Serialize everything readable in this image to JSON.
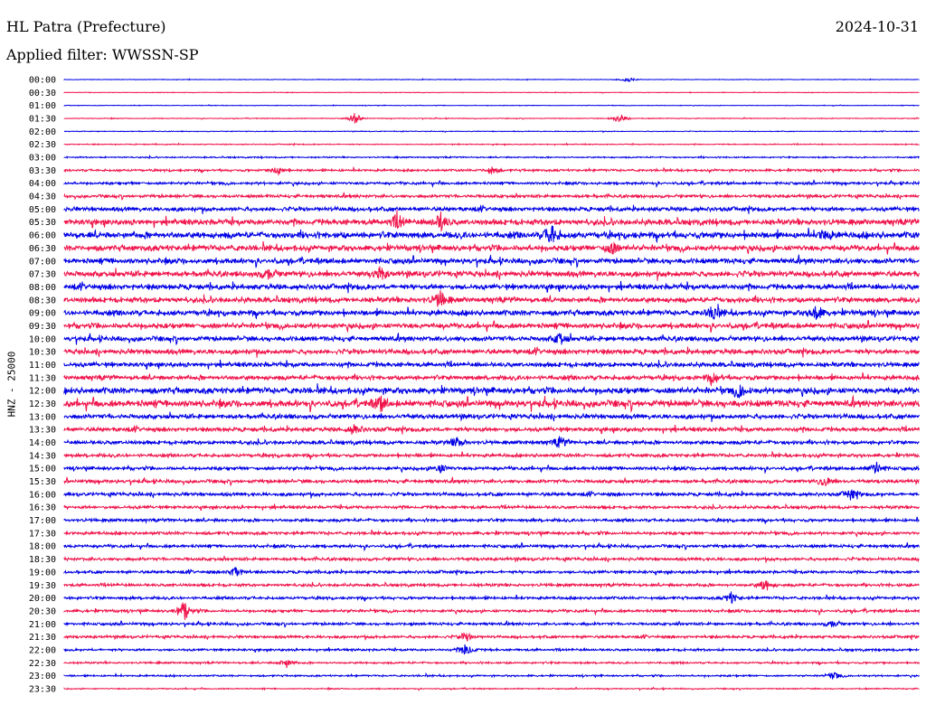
{
  "header": {
    "station": "HL Patra (Prefecture)",
    "date": "2024-10-31",
    "filter": "Applied filter: WWSSN-SP"
  },
  "axis": {
    "ylabel": "HNZ - 25000"
  },
  "colors": {
    "trace_a": "#0000e6",
    "trace_b": "#f0144b"
  },
  "chart_data": {
    "type": "line",
    "kind": "helicorder",
    "ylabel": "HNZ - 25000",
    "row_labels": [
      "00:00",
      "00:30",
      "01:00",
      "01:30",
      "02:00",
      "02:30",
      "03:00",
      "03:30",
      "04:00",
      "04:30",
      "05:00",
      "05:30",
      "06:00",
      "06:30",
      "07:00",
      "07:30",
      "08:00",
      "08:30",
      "09:00",
      "09:30",
      "10:00",
      "10:30",
      "11:00",
      "11:30",
      "12:00",
      "12:30",
      "13:00",
      "13:30",
      "14:00",
      "14:30",
      "15:00",
      "15:30",
      "16:00",
      "16:30",
      "17:00",
      "17:30",
      "18:00",
      "18:30",
      "19:00",
      "19:30",
      "20:00",
      "20:30",
      "21:00",
      "21:30",
      "22:00",
      "22:30",
      "23:00",
      "23:30"
    ],
    "row_colors": [
      "blue",
      "red"
    ],
    "noise_level": [
      0.3,
      0.3,
      0.3,
      0.4,
      0.4,
      0.5,
      0.7,
      1.2,
      1.4,
      1.6,
      2.2,
      3.0,
      3.4,
      3.0,
      2.8,
      3.0,
      2.8,
      2.8,
      2.8,
      2.8,
      2.6,
      2.6,
      2.4,
      2.4,
      3.2,
      3.6,
      2.4,
      2.2,
      2.0,
      1.8,
      1.8,
      1.8,
      1.8,
      1.6,
      1.6,
      1.6,
      1.6,
      1.6,
      1.5,
      1.5,
      1.5,
      1.5,
      1.4,
      1.4,
      1.2,
      1.0,
      0.9,
      0.6
    ],
    "events": [
      {
        "row": 0,
        "t": 0.66,
        "amp": 3
      },
      {
        "row": 3,
        "t": 0.34,
        "amp": 6
      },
      {
        "row": 3,
        "t": 0.65,
        "amp": 6
      },
      {
        "row": 7,
        "t": 0.25,
        "amp": 5
      },
      {
        "row": 7,
        "t": 0.5,
        "amp": 5
      },
      {
        "row": 11,
        "t": 0.39,
        "amp": 9
      },
      {
        "row": 11,
        "t": 0.44,
        "amp": 10
      },
      {
        "row": 12,
        "t": 0.57,
        "amp": 12
      },
      {
        "row": 12,
        "t": 0.89,
        "amp": 7
      },
      {
        "row": 13,
        "t": 0.64,
        "amp": 7
      },
      {
        "row": 15,
        "t": 0.24,
        "amp": 7
      },
      {
        "row": 15,
        "t": 0.37,
        "amp": 7
      },
      {
        "row": 17,
        "t": 0.44,
        "amp": 9
      },
      {
        "row": 18,
        "t": 0.76,
        "amp": 8
      },
      {
        "row": 18,
        "t": 0.88,
        "amp": 9
      },
      {
        "row": 20,
        "t": 0.58,
        "amp": 6
      },
      {
        "row": 23,
        "t": 0.76,
        "amp": 6
      },
      {
        "row": 24,
        "t": 0.79,
        "amp": 7
      },
      {
        "row": 25,
        "t": 0.37,
        "amp": 7
      },
      {
        "row": 27,
        "t": 0.34,
        "amp": 6
      },
      {
        "row": 28,
        "t": 0.46,
        "amp": 6
      },
      {
        "row": 28,
        "t": 0.58,
        "amp": 6
      },
      {
        "row": 30,
        "t": 0.44,
        "amp": 5
      },
      {
        "row": 30,
        "t": 0.95,
        "amp": 7
      },
      {
        "row": 31,
        "t": 0.89,
        "amp": 6
      },
      {
        "row": 32,
        "t": 0.92,
        "amp": 6
      },
      {
        "row": 38,
        "t": 0.2,
        "amp": 6
      },
      {
        "row": 39,
        "t": 0.82,
        "amp": 7
      },
      {
        "row": 40,
        "t": 0.78,
        "amp": 6
      },
      {
        "row": 41,
        "t": 0.14,
        "amp": 12
      },
      {
        "row": 42,
        "t": 0.9,
        "amp": 5
      },
      {
        "row": 43,
        "t": 0.47,
        "amp": 5
      },
      {
        "row": 44,
        "t": 0.47,
        "amp": 7
      },
      {
        "row": 45,
        "t": 0.26,
        "amp": 5
      },
      {
        "row": 46,
        "t": 0.9,
        "amp": 5
      }
    ]
  }
}
